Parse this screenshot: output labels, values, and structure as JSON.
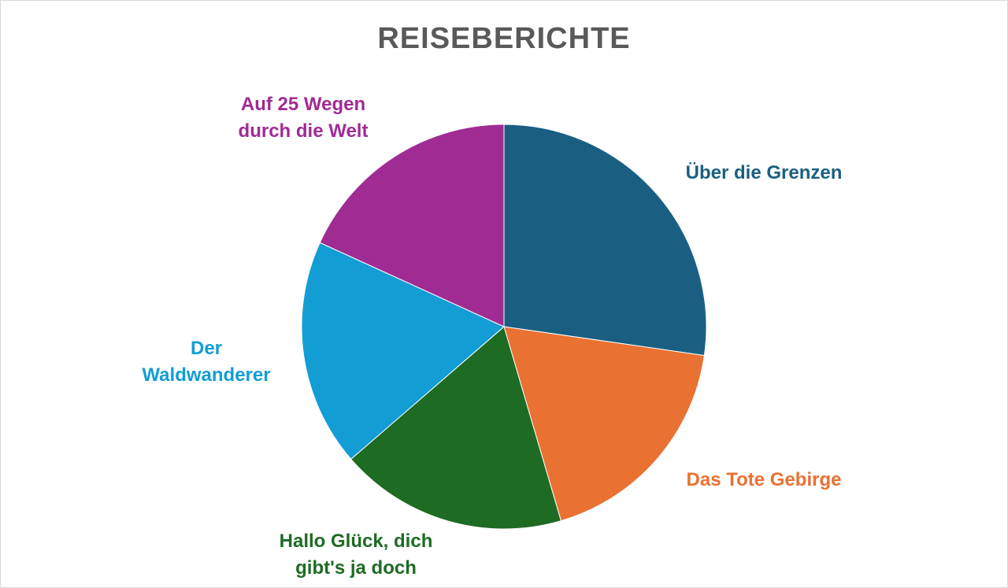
{
  "chart_data": {
    "type": "pie",
    "title": "REISEBERICHTE",
    "categories": [
      "Über die Grenzen",
      "Das Tote Gebirge",
      "Hallo Glück, dich gibt's ja doch",
      "Der Waldwanderer",
      "Auf 25 Wegen durch die Welt"
    ],
    "values": [
      27.3,
      18.2,
      18.2,
      18.2,
      18.2
    ],
    "colors": [
      "#1a5f82",
      "#e97132",
      "#1e6b24",
      "#139dd5",
      "#a02b93"
    ]
  }
}
